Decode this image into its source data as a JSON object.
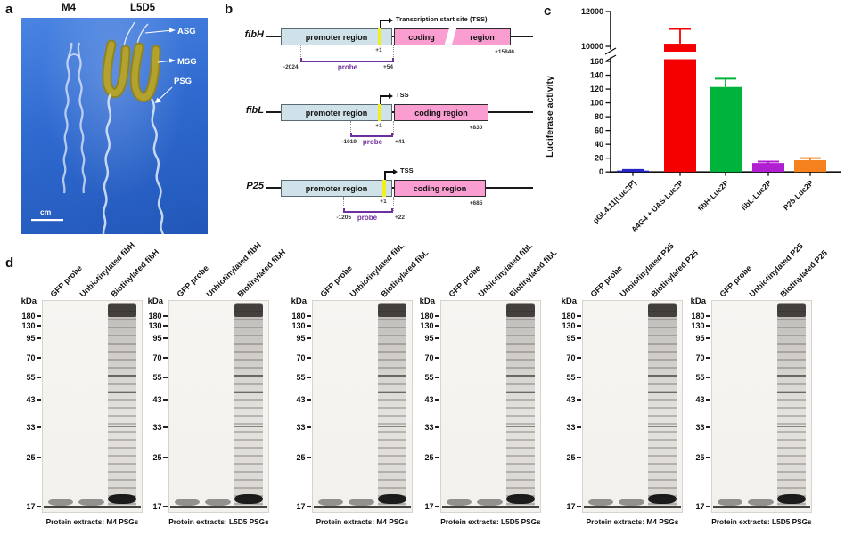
{
  "figure": {
    "panel_letters": {
      "a": "a",
      "b": "b",
      "c": "c",
      "d": "d"
    }
  },
  "panel_a": {
    "left_specimen": "M4",
    "right_specimen": "L5D5",
    "gland_labels": [
      "ASG",
      "MSG",
      "PSG"
    ],
    "scale_label": "cm",
    "photo_background": "#2f6ad0"
  },
  "panel_b": {
    "colors": {
      "promoter_fill": "#cfe2ea",
      "coding_fill": "#fa9ed2",
      "tss_marker": "#f2ef1c",
      "probe": "#7030a0"
    },
    "constructs": [
      {
        "gene": "fibH",
        "promoter_label": "promoter region",
        "coding_label_left": "coding",
        "coding_label_right": "region",
        "tss_label": "Transcription start site (TSS)",
        "plus_one": "+1",
        "end_label": "+15846",
        "probe_start": "-2024",
        "probe_label": "probe",
        "probe_end": "+54"
      },
      {
        "gene": "fibL",
        "promoter_label": "promoter region",
        "coding_label": "coding region",
        "tss_label": "TSS",
        "plus_one": "+1",
        "end_label": "+830",
        "probe_start": "-1019",
        "probe_label": "probe",
        "probe_end": "+41"
      },
      {
        "gene": "P25",
        "promoter_label": "promoter region",
        "coding_label": "coding region",
        "tss_label": "TSS",
        "plus_one": "+1",
        "end_label": "+685",
        "probe_start": "-1205",
        "probe_label": "probe",
        "probe_end": "+22"
      }
    ]
  },
  "chart_data": {
    "type": "bar",
    "ylabel": "Luciferase activity",
    "categories": [
      "pGL4.11[Luc2P]",
      "A4G4 + UAS-Luc2P",
      "fibH-Luc2P",
      "fibL-Luc2P",
      "P25-Luc2P"
    ],
    "values": [
      2,
      10150,
      123,
      13,
      17
    ],
    "errors": [
      1,
      850,
      12,
      2,
      3
    ],
    "bar_colors": [
      "#2323c8",
      "#f50000",
      "#00b33c",
      "#b01fd0",
      "#f6821f"
    ],
    "ylim_lower": [
      0,
      160
    ],
    "ytick_step_lower": 20,
    "yticks_upper": [
      10000,
      12000
    ],
    "axis_break": true,
    "grid": false,
    "legend": false
  },
  "panel_d": {
    "kda_header": "kDa",
    "ladder": [
      "180",
      "130",
      "95",
      "70",
      "55",
      "43",
      "33",
      "25",
      "17"
    ],
    "gels": [
      {
        "lanes": [
          "GFP probe",
          "Unbiotinylated fibH",
          "Biotinylated fibH"
        ],
        "caption": "Protein extracts: M4 PSGs"
      },
      {
        "lanes": [
          "GFP probe",
          "Unbiotinylated fibH",
          "Biotinylated fibH"
        ],
        "caption": "Protein extracts: L5D5 PSGs"
      },
      {
        "lanes": [
          "GFP probe",
          "Unbiotinylated fibL",
          "Biotinylated fibL"
        ],
        "caption": "Protein extracts: M4 PSGs"
      },
      {
        "lanes": [
          "GFP probe",
          "Unbiotinylated fibL",
          "Biotinylated fibL"
        ],
        "caption": "Protein extracts: L5D5 PSGs"
      },
      {
        "lanes": [
          "GFP probe",
          "Unbiotinylated P25",
          "Biotinylated P25"
        ],
        "caption": "Protein extracts: M4 PSGs"
      },
      {
        "lanes": [
          "GFP probe",
          "Unbiotinylated P25",
          "Biotinylated P25"
        ],
        "caption": "Protein extracts: L5D5 PSGs"
      }
    ]
  }
}
